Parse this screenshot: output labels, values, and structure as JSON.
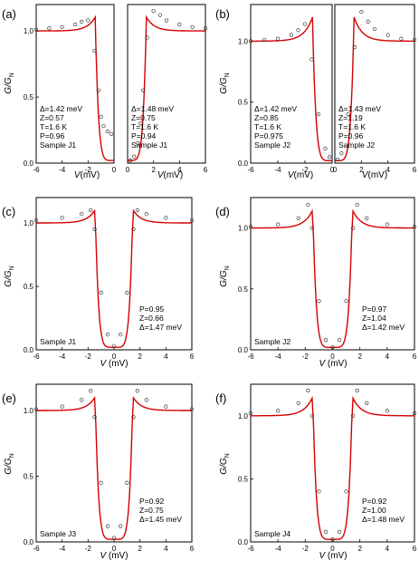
{
  "ylabel_main": "G/G",
  "ylabel_sub": "N",
  "xlabel_var": "V",
  "xlabel_unit": " (mV)",
  "xlabel_unit_tight": "(mV)",
  "colors": {
    "fit": "#d40000",
    "data": "#222222",
    "axis": "#000000"
  },
  "panels": [
    {
      "label": "(a)",
      "ann": [
        "Δ=1.42 meV",
        "Z=0.57",
        "T=1.6 K",
        "P=0.96"
      ],
      "sample": "Sample J1"
    },
    {
      "label": "",
      "ann": [
        "Δ=1.48 meV",
        "Z=0.75",
        "T=1.6 K",
        "P=0.94"
      ],
      "sample": "Sample J1"
    },
    {
      "label": "(b)",
      "ann": [
        "Δ=1.42 meV",
        "Z=0.85",
        "T=1.6 K",
        "P=0.975"
      ],
      "sample": "Sample J2"
    },
    {
      "label": "",
      "ann": [
        "Δ=1.43 meV",
        "Z=1.19",
        "T=1.6 K",
        "P=0.96"
      ],
      "sample": "Sample J2"
    },
    {
      "label": "(c)",
      "ann": [
        "P=0.95",
        "Z=0.66",
        "Δ=1.47 meV"
      ],
      "sample": "Sample J1"
    },
    {
      "label": "(d)",
      "ann": [
        "P=0.97",
        "Z=1.04",
        "Δ=1.42 meV"
      ],
      "sample": "Sample J2"
    },
    {
      "label": "(e)",
      "ann": [
        "P=0.92",
        "Z=0.75",
        "Δ=1.45 meV"
      ],
      "sample": "Sample J3"
    },
    {
      "label": "(f)",
      "ann": [
        "P=0.92",
        "Z=1.00",
        "Δ=1.48 meV"
      ],
      "sample": "Sample J4"
    }
  ],
  "chart_data": [
    {
      "type": "scatter",
      "side": "left",
      "x_range": [
        -6,
        0
      ],
      "ylim": [
        0,
        1.2
      ],
      "xticks": [
        "-6",
        "-4",
        "-2",
        "0"
      ],
      "yticks": [
        "0.0",
        "0.5",
        "1.0"
      ],
      "series": [
        {
          "values_x": [
            -6,
            -5,
            -4,
            -3,
            -2.5,
            -2,
            -1.5,
            -1.2,
            -1,
            -0.8,
            -0.5,
            -0.2
          ],
          "values_y": [
            1.01,
            1.02,
            1.03,
            1.05,
            1.07,
            1.08,
            0.85,
            0.55,
            0.35,
            0.28,
            0.24,
            0.22
          ]
        }
      ]
    },
    {
      "type": "scatter",
      "side": "right",
      "x_range": [
        0,
        6
      ],
      "ylim": [
        0,
        1.2
      ],
      "xticks": [
        "0",
        "2",
        "4",
        "6"
      ],
      "series": [
        {
          "values_x": [
            0.2,
            0.5,
            0.8,
            1,
            1.2,
            1.5,
            2,
            2.5,
            3,
            4,
            5,
            6
          ],
          "values_y": [
            0.02,
            0.05,
            0.15,
            0.3,
            0.55,
            0.95,
            1.15,
            1.12,
            1.08,
            1.05,
            1.03,
            1.02
          ]
        }
      ]
    },
    {
      "type": "scatter",
      "side": "left",
      "x_range": [
        -6,
        0
      ],
      "ylim": [
        0,
        1.3
      ],
      "xticks": [
        "-6",
        "-4",
        "-2",
        "0"
      ],
      "yticks": [
        "0.0",
        "0.5",
        "1.0"
      ],
      "series": [
        {
          "values_x": [
            -6,
            -5,
            -4,
            -3,
            -2.5,
            -2,
            -1.5,
            -1,
            -0.5,
            -0.2
          ],
          "values_y": [
            1.0,
            1.01,
            1.02,
            1.05,
            1.09,
            1.14,
            0.85,
            0.4,
            0.12,
            0.05
          ]
        }
      ]
    },
    {
      "type": "scatter",
      "side": "right",
      "x_range": [
        0,
        6
      ],
      "ylim": [
        0,
        1.3
      ],
      "xticks": [
        "0",
        "2",
        "4",
        "6"
      ],
      "series": [
        {
          "values_x": [
            0.2,
            0.5,
            1,
            1.5,
            2,
            2.5,
            3,
            4,
            5,
            6
          ],
          "values_y": [
            0.03,
            0.08,
            0.4,
            0.95,
            1.24,
            1.16,
            1.1,
            1.05,
            1.02,
            1.01
          ]
        }
      ]
    },
    {
      "type": "scatter",
      "x_range": [
        -6,
        6
      ],
      "ylim": [
        0,
        1.2
      ],
      "xticks": [
        "-6",
        "-4",
        "-2",
        "0",
        "2",
        "4",
        "6"
      ],
      "yticks": [
        "0.0",
        "0.5",
        "1.0"
      ],
      "series": [
        {
          "values_x": [
            -6,
            -4,
            -2.5,
            -1.8,
            -1.5,
            -1,
            -0.5,
            0,
            0.5,
            1,
            1.5,
            1.8,
            2.5,
            4,
            6
          ],
          "values_y": [
            1.02,
            1.04,
            1.07,
            1.1,
            0.95,
            0.45,
            0.12,
            0.03,
            0.12,
            0.45,
            0.95,
            1.1,
            1.07,
            1.04,
            1.02
          ]
        }
      ]
    },
    {
      "type": "scatter",
      "x_range": [
        -6,
        6
      ],
      "ylim": [
        0,
        1.25
      ],
      "xticks": [
        "-6",
        "-4",
        "-2",
        "0",
        "2",
        "4",
        "6"
      ],
      "yticks": [
        "0.0",
        "0.5",
        "1.0"
      ],
      "series": [
        {
          "values_x": [
            -6,
            -4,
            -2.5,
            -1.8,
            -1.5,
            -1,
            -0.5,
            0,
            0.5,
            1,
            1.5,
            1.8,
            2.5,
            4,
            6
          ],
          "values_y": [
            1.01,
            1.03,
            1.08,
            1.19,
            1.0,
            0.4,
            0.08,
            0.02,
            0.08,
            0.4,
            1.0,
            1.19,
            1.08,
            1.03,
            1.01
          ]
        }
      ]
    },
    {
      "type": "scatter",
      "x_range": [
        -6,
        6
      ],
      "ylim": [
        0,
        1.2
      ],
      "xticks": [
        "-6",
        "-4",
        "-2",
        "0",
        "2",
        "4",
        "6"
      ],
      "yticks": [
        "0.0",
        "0.5",
        "1.0"
      ],
      "series": [
        {
          "values_x": [
            -6,
            -4,
            -2.5,
            -1.8,
            -1.5,
            -1,
            -0.5,
            0,
            0.5,
            1,
            1.5,
            1.8,
            2.5,
            4,
            6
          ],
          "values_y": [
            1.01,
            1.03,
            1.08,
            1.15,
            0.95,
            0.45,
            0.12,
            0.03,
            0.12,
            0.45,
            0.95,
            1.15,
            1.08,
            1.03,
            1.01
          ]
        }
      ]
    },
    {
      "type": "scatter",
      "x_range": [
        -6,
        6
      ],
      "ylim": [
        0,
        1.25
      ],
      "xticks": [
        "-6",
        "-4",
        "-2",
        "0",
        "2",
        "4",
        "6"
      ],
      "yticks": [
        "0.0",
        "0.5",
        "1.0"
      ],
      "series": [
        {
          "values_x": [
            -6,
            -4,
            -2.5,
            -1.8,
            -1.5,
            -1,
            -0.5,
            0,
            0.5,
            1,
            1.5,
            1.8,
            2.5,
            4,
            6
          ],
          "values_y": [
            1.02,
            1.04,
            1.1,
            1.2,
            1.0,
            0.4,
            0.08,
            0.02,
            0.08,
            0.4,
            1.0,
            1.2,
            1.1,
            1.04,
            1.02
          ]
        }
      ]
    }
  ]
}
